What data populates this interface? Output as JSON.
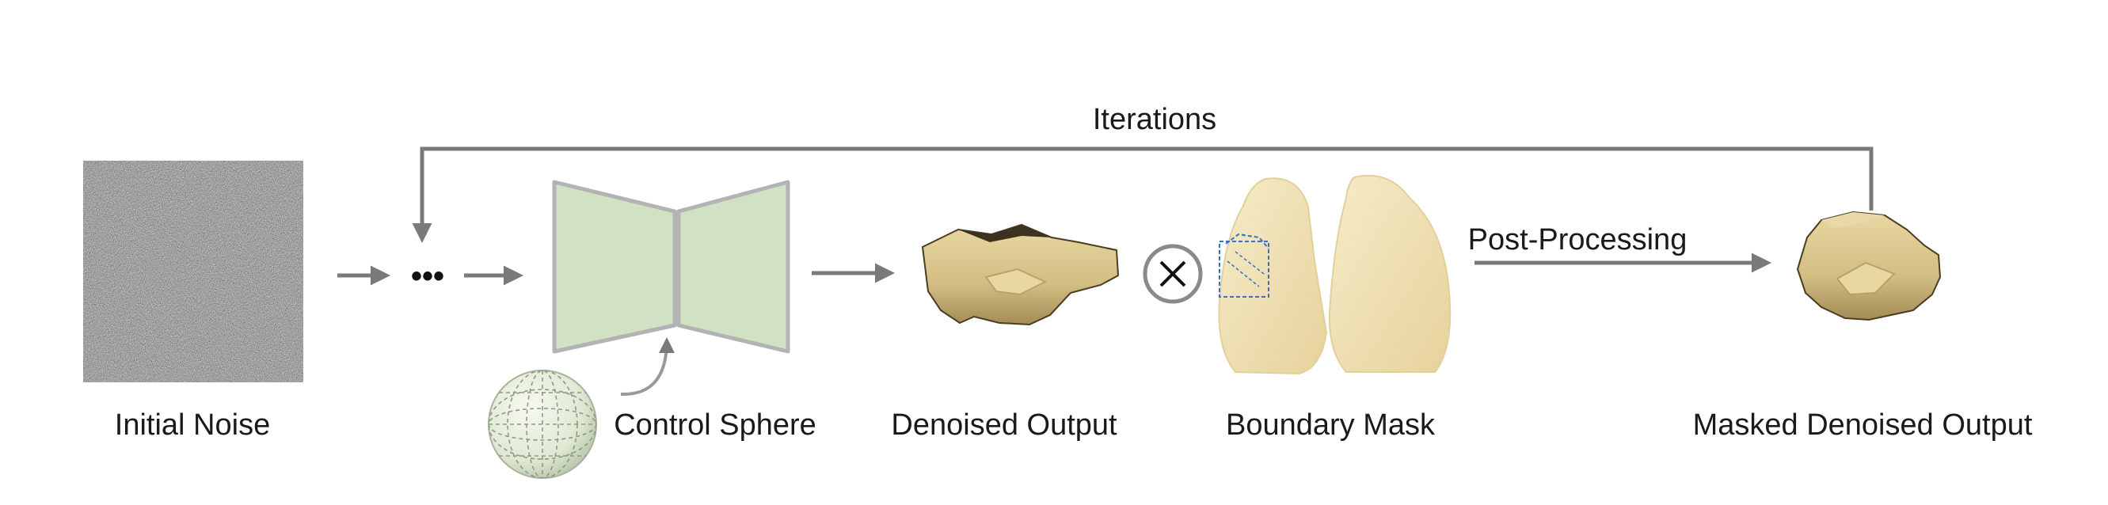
{
  "diagram": {
    "loop_label": "Iterations",
    "ellipsis": "•••",
    "operator_symbol": "×",
    "edge_label_post": "Post-Processing",
    "labels": {
      "initial_noise": "Initial Noise",
      "control_sphere": "Control Sphere",
      "denoised_output": "Denoised Output",
      "boundary_mask": "Boundary Mask",
      "masked_output": "Masked Denoised Output"
    }
  },
  "colors": {
    "arrow": "#7a7a7a",
    "unet_fill": "#d0e2c3",
    "unet_stroke": "#b3b3b3",
    "blob": "#d9c58c",
    "lung": "#efdfb0",
    "mask_box": "#3a6fc4",
    "text": "#1a1a1a"
  },
  "icons": [
    "noise-image",
    "unet-block",
    "sphere-mesh",
    "denoised-blob",
    "multiply-icon",
    "lung-mask",
    "masked-blob"
  ]
}
